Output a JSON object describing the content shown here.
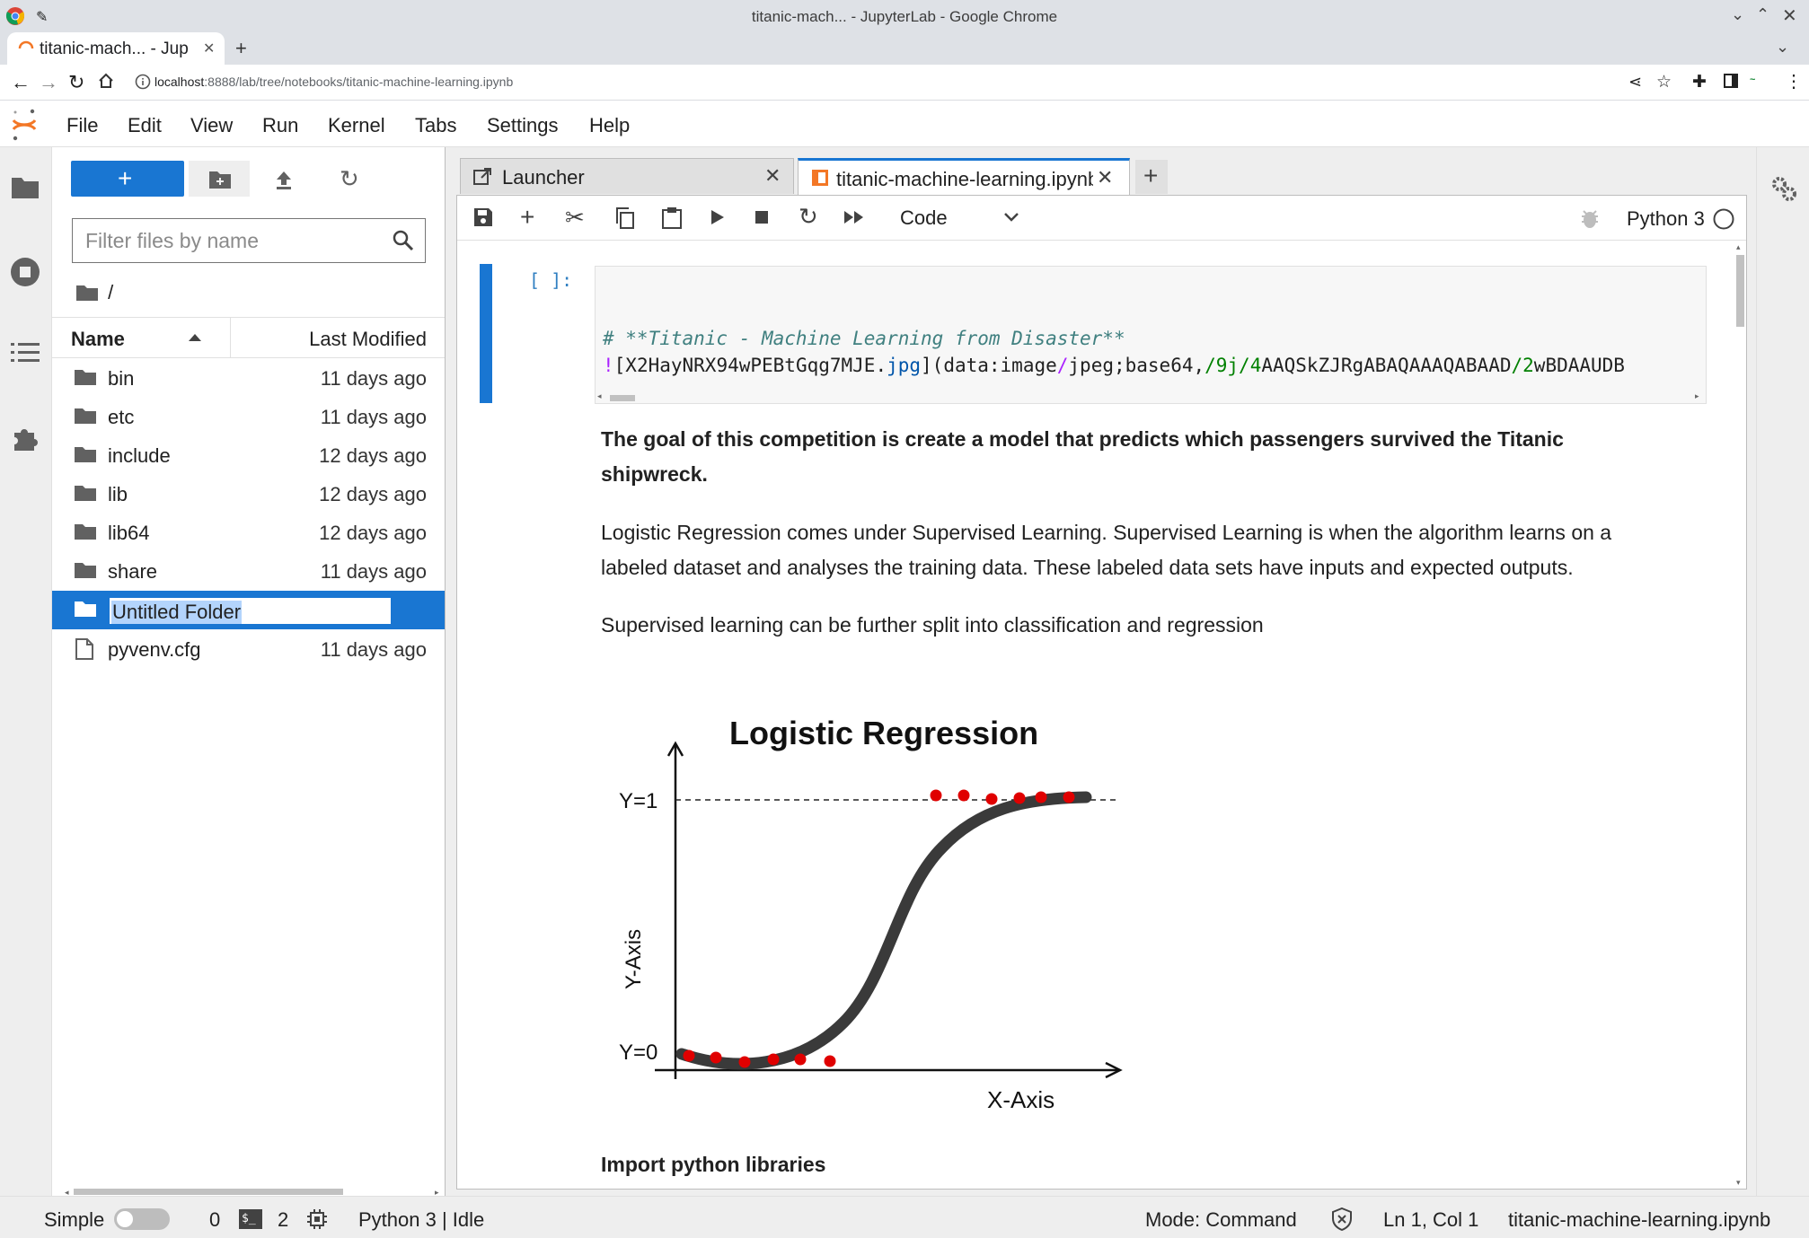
{
  "window": {
    "title": "titanic-mach... - JupyterLab - Google Chrome",
    "tab_title": "titanic-mach... - Jup",
    "url_host": "localhost",
    "url_rest": ":8888/lab/tree/notebooks/titanic-machine-learning.ipynb"
  },
  "menu": [
    "File",
    "Edit",
    "View",
    "Run",
    "Kernel",
    "Tabs",
    "Settings",
    "Help"
  ],
  "filebrowser": {
    "filter_placeholder": "Filter files by name",
    "breadcrumb": "/",
    "col_name": "Name",
    "col_modified": "Last Modified",
    "items": [
      {
        "name": "bin",
        "modified": "11 days ago",
        "type": "folder"
      },
      {
        "name": "etc",
        "modified": "11 days ago",
        "type": "folder"
      },
      {
        "name": "include",
        "modified": "12 days ago",
        "type": "folder"
      },
      {
        "name": "lib",
        "modified": "12 days ago",
        "type": "folder"
      },
      {
        "name": "lib64",
        "modified": "12 days ago",
        "type": "folder"
      },
      {
        "name": "share",
        "modified": "11 days ago",
        "type": "folder"
      },
      {
        "name": "Untitled Folder",
        "modified": "",
        "type": "folder"
      },
      {
        "name": "pyvenv.cfg",
        "modified": "11 days ago",
        "type": "file"
      }
    ]
  },
  "tabs": {
    "launcher": "Launcher",
    "notebook": "titanic-machine-learning.ipynb"
  },
  "toolbar": {
    "cell_type": "Code",
    "kernel": "Python 3"
  },
  "cell": {
    "prompt": "[ ]:",
    "code_line1": "# **Titanic - Machine Learning from Disaster**",
    "code_line2_a": "!",
    "code_line2_b": "[X2HayNRX94wPEBtGqg7MJE.",
    "code_line2_c": "jpg",
    "code_line2_d": "](data:image",
    "code_line2_e": "/",
    "code_line2_f": "jpeg;base64,",
    "code_line2_g": "/9j/4",
    "code_line2_h": "AAQSkZJRgABAQAAAQABAAD",
    "code_line2_i": "/2",
    "code_line2_j": "wBDAAUDB"
  },
  "markdown": {
    "goal": "The goal of this competition is create a model that predicts which passengers survived the Titanic shipwreck.",
    "logistic": "Logistic Regression comes under Supervised Learning. Supervised Learning is when the algorithm learns on a labeled dataset and analyses the training data. These labeled data sets have inputs and expected outputs.",
    "split": "Supervised learning can be further split into classification and regression",
    "import": "Import python libraries"
  },
  "figure": {
    "title": "Logistic Regression",
    "y1": "Y=1",
    "y0": "Y=0",
    "yaxis": "Y-Axis",
    "xaxis": "X-Axis"
  },
  "status": {
    "mode_label": "Simple",
    "count_a": "0",
    "count_b": "2",
    "kernel_status": "Python 3 | Idle",
    "mode": "Mode: Command",
    "position": "Ln 1, Col 1",
    "filename": "titanic-machine-learning.ipynb"
  },
  "colors": {
    "accent": "#1976d2",
    "jupyter_orange": "#f37726",
    "prompt_blue": "#307fc1"
  }
}
